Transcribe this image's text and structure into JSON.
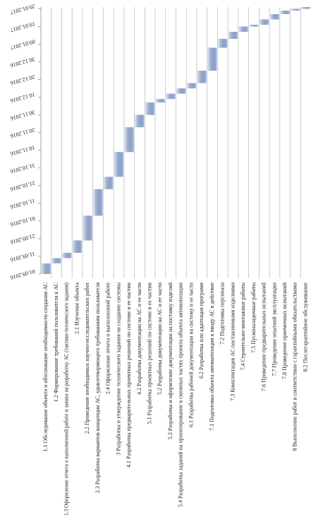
{
  "chart_data": {
    "type": "gantt",
    "categories": [
      "1.1 Обследование объекта и обоснование необходимости создания АС",
      "1.2 Формирование требований пользователя к АС",
      "1.3 Оформление отчета о выполненной работе и заявки на разработку АС (тактико-технического задания)",
      "2.1 Изучение объекта",
      "2.2 Проведение необходимых научно-исследовательских работ",
      "2.3 Разработка вариантов концепции АС, удовлетворяющего требованиям пользователя",
      "2.4 Оформление отчета о выполненной работе",
      "3 Разработка и утверждение технического задания на создание системы",
      "4.1 Разработка предварительных проектных решений по системе и ее частям",
      "4.2 Разработка документации на АС и ее части",
      "5.1 Разработка проектных решений по системе и ее частям",
      "5.2 Разработка документации на АС и ее части",
      "5.3 Разработка и оформление документации на поставку изделий",
      "5.4 Разработка заданий на проектирование в смежных частях проекта объекта автоматизации",
      "6.1 Разработка рабочей документации на систему и ее части",
      "6.2 Разработка или адаптация программ",
      "7.1 Подготовка объекта автоматизации к вводу АС в действие",
      "7.2 Подготовка персонала",
      "7.3 Комплектация АС поставляемыми изделиями",
      "7.4 Строительно-монтажные работы",
      "7.5 Пусконаладочные работы",
      "7.6 Проведение предварительных испытаний",
      "7.7 Проведение опытной эксплуатации",
      "7.8 Проведение приемочных испытаний",
      "8 Выполнение работ в соответствии с гарантийными обязательствами",
      "8.2 Послегарантийное обслуживание"
    ],
    "start": [
      "2016-09-01",
      "2016-09-07",
      "2016-09-10",
      "2016-09-13",
      "2016-09-20",
      "2016-10-04",
      "2016-10-19",
      "2016-10-26",
      "2016-11-09",
      "2016-11-23",
      "2016-11-30",
      "2016-12-07",
      "2016-12-09",
      "2016-12-12",
      "2016-12-15",
      "2016-12-18",
      "2016-12-25",
      "2017-01-07",
      "2017-01-12",
      "2017-01-16",
      "2017-01-19",
      "2017-01-20",
      "2017-01-23",
      "2017-01-26",
      "2017-01-28",
      "2017-01-29"
    ],
    "end": [
      "2016-09-07",
      "2016-09-10",
      "2016-09-13",
      "2016-09-20",
      "2016-10-04",
      "2016-10-19",
      "2016-10-26",
      "2016-11-09",
      "2016-11-23",
      "2016-11-30",
      "2016-12-07",
      "2016-12-09",
      "2016-12-12",
      "2016-12-15",
      "2016-12-18",
      "2016-12-25",
      "2017-01-07",
      "2017-01-12",
      "2017-01-16",
      "2017-01-19",
      "2017-01-20",
      "2017-01-23",
      "2017-01-26",
      "2017-01-28",
      "2017-01-29",
      "2017-01-30"
    ],
    "color": "#9db5e6",
    "xlim": [
      "2016-09-01",
      "2017-01-30"
    ],
    "xticks": [
      {
        "value": "2016-09-01",
        "label": "01.09.2016"
      },
      {
        "value": "2016-09-11",
        "label": "11.09.2016"
      },
      {
        "value": "2016-09-21",
        "label": "21.09.2016"
      },
      {
        "value": "2016-10-01",
        "label": "01.10.2016"
      },
      {
        "value": "2016-10-11",
        "label": "11.10.2016"
      },
      {
        "value": "2016-10-21",
        "label": "21.10.2016"
      },
      {
        "value": "2016-10-31",
        "label": "31.10.2016"
      },
      {
        "value": "2016-11-10",
        "label": "10.11.2016"
      },
      {
        "value": "2016-11-20",
        "label": "20.11.2016"
      },
      {
        "value": "2016-11-30",
        "label": "30.11.2016"
      },
      {
        "value": "2016-12-10",
        "label": "10.12.2016"
      },
      {
        "value": "2016-12-20",
        "label": "20.12.2016"
      },
      {
        "value": "2016-12-30",
        "label": "30.12.2016"
      },
      {
        "value": "2017-01-09",
        "label": "09.01.2017"
      },
      {
        "value": "2017-01-19",
        "label": "19.01.2017"
      },
      {
        "value": "2017-01-29",
        "label": "29.01.2017"
      }
    ],
    "grid": true
  }
}
